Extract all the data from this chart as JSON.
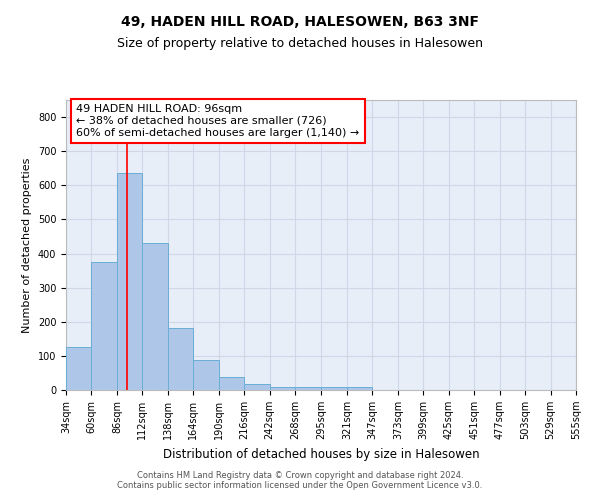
{
  "title": "49, HADEN HILL ROAD, HALESOWEN, B63 3NF",
  "subtitle": "Size of property relative to detached houses in Halesowen",
  "xlabel": "Distribution of detached houses by size in Halesowen",
  "ylabel": "Number of detached properties",
  "bar_values": [
    125,
    375,
    635,
    430,
    183,
    88,
    37,
    17,
    10,
    8,
    8,
    8
  ],
  "bin_edges": [
    34,
    60,
    86,
    112,
    138,
    164,
    190,
    216,
    242,
    268,
    295,
    321,
    347
  ],
  "all_xtick_positions": [
    34,
    60,
    86,
    112,
    138,
    164,
    190,
    216,
    242,
    268,
    295,
    321,
    347,
    373,
    399,
    425,
    451,
    477,
    503,
    529,
    555
  ],
  "xtick_labels": [
    "34sqm",
    "60sqm",
    "86sqm",
    "112sqm",
    "138sqm",
    "164sqm",
    "190sqm",
    "216sqm",
    "242sqm",
    "268sqm",
    "295sqm",
    "321sqm",
    "347sqm",
    "373sqm",
    "399sqm",
    "425sqm",
    "451sqm",
    "477sqm",
    "503sqm",
    "529sqm",
    "555sqm"
  ],
  "bar_color": "#aec6e8",
  "bar_edgecolor": "#6aaed6",
  "vline_x": 96,
  "vline_color": "red",
  "annotation_text": "49 HADEN HILL ROAD: 96sqm\n← 38% of detached houses are smaller (726)\n60% of semi-detached houses are larger (1,140) →",
  "annotation_box_edgecolor": "red",
  "ylim": [
    0,
    850
  ],
  "yticks": [
    0,
    100,
    200,
    300,
    400,
    500,
    600,
    700,
    800
  ],
  "grid_color": "#d0d8e8",
  "background_color": "#e8eef8",
  "footer_text": "Contains HM Land Registry data © Crown copyright and database right 2024.\nContains public sector information licensed under the Open Government Licence v3.0.",
  "title_fontsize": 10,
  "subtitle_fontsize": 9,
  "xlabel_fontsize": 8.5,
  "ylabel_fontsize": 8,
  "tick_fontsize": 7,
  "annotation_fontsize": 8,
  "footer_fontsize": 6,
  "xlim_left": 34,
  "xlim_right": 555
}
